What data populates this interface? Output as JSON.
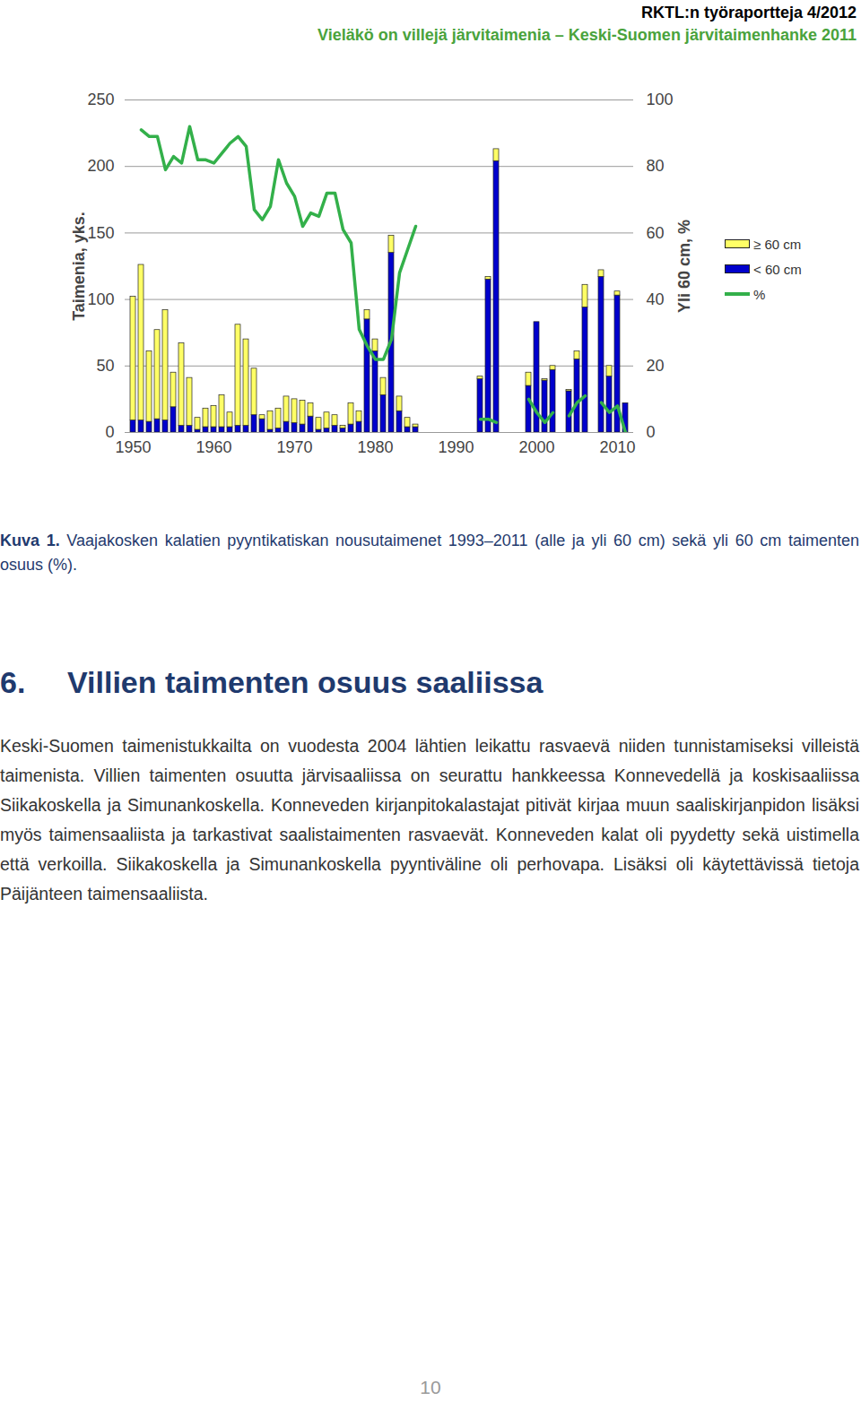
{
  "header": {
    "report": "RKTL:n työraportteja 4/2012",
    "title": "Vieläkö on villejä järvitaimenia – Keski-Suomen järvitaimenhanke 2011"
  },
  "chart_data": {
    "type": "bar",
    "stacked": true,
    "categories": [
      "1950",
      null,
      null,
      null,
      null,
      null,
      null,
      null,
      null,
      null,
      "1960",
      null,
      null,
      null,
      null,
      null,
      null,
      null,
      null,
      null,
      "1970",
      null,
      null,
      null,
      null,
      null,
      null,
      null,
      null,
      null,
      "1980",
      null,
      null,
      null,
      null,
      null,
      null,
      null,
      null,
      null,
      "1990",
      null,
      null,
      null,
      null,
      null,
      null,
      null,
      null,
      null,
      "2000",
      null,
      null,
      null,
      null,
      null,
      null,
      null,
      null,
      null,
      "2010",
      null
    ],
    "ylabel": "Taimenia, yks.",
    "y2label": "Yli 60 cm, %",
    "ylim": [
      0,
      250
    ],
    "yticks": [
      0,
      50,
      100,
      150,
      200,
      250
    ],
    "y2lim": [
      0,
      100
    ],
    "y2ticks": [
      0,
      20,
      40,
      60,
      80,
      100
    ],
    "grid": true,
    "legend": "right",
    "series": [
      {
        "name": "≥ 60 cm",
        "color": "#ffff66",
        "values": [
          93,
          117,
          53,
          67,
          83,
          26,
          62,
          36,
          9,
          14,
          16,
          24,
          11,
          76,
          65,
          35,
          3,
          14,
          15,
          19,
          18,
          18,
          10,
          9,
          12,
          8,
          2,
          16,
          8,
          7,
          9,
          13,
          13,
          11,
          7,
          2,
          null,
          null,
          null,
          null,
          null,
          null,
          null,
          2,
          2,
          9,
          null,
          null,
          null,
          10,
          0,
          1,
          3,
          null,
          1,
          6,
          17,
          null,
          5,
          8,
          3,
          0
        ]
      },
      {
        "name": "< 60 cm",
        "color": "#0000cc",
        "values": [
          9,
          9,
          8,
          10,
          9,
          19,
          5,
          5,
          2,
          4,
          4,
          4,
          4,
          5,
          5,
          13,
          10,
          2,
          3,
          8,
          7,
          6,
          12,
          2,
          3,
          5,
          3,
          6,
          8,
          85,
          61,
          28,
          135,
          16,
          4,
          4,
          null,
          null,
          null,
          null,
          null,
          null,
          null,
          40,
          115,
          204,
          null,
          null,
          null,
          35,
          83,
          39,
          47,
          null,
          31,
          55,
          94,
          null,
          117,
          42,
          103,
          22
        ]
      },
      {
        "name": "%",
        "type": "line",
        "axis": "y2",
        "color": "#33b04a",
        "values": [
          null,
          91,
          89,
          89,
          79,
          83,
          81,
          92,
          82,
          82,
          81,
          84,
          87,
          89,
          86,
          67,
          64,
          68,
          82,
          75,
          71,
          62,
          66,
          65,
          72,
          72,
          61,
          57,
          31,
          26,
          22,
          22,
          28,
          48,
          55,
          62,
          null,
          null,
          null,
          null,
          null,
          null,
          null,
          4,
          4,
          3,
          null,
          null,
          null,
          10,
          6,
          3,
          6,
          null,
          5,
          9,
          11,
          null,
          9,
          6,
          8,
          0
        ]
      }
    ]
  },
  "caption": {
    "label": "Kuva 1.",
    "text": "Vaajakosken kalatien pyyntikatiskan nousutaimenet 1993–2011 (alle ja yli 60 cm) sekä yli 60 cm taimenten osuus (%)."
  },
  "section": {
    "number": "6.",
    "title": "Villien taimenten osuus saaliissa"
  },
  "paragraph": "Keski-Suomen taimenistukkailta on vuodesta 2004 lähtien leikattu rasvaevä niiden tunnistamiseksi villeistä taimenista. Villien taimenten osuutta järvisaaliissa on seurattu hankkeessa Konnevedellä ja koskisaaliissa Siikakoskella ja Simunankoskella. Konneveden kirjanpitokalastajat pitivät kirjaa muun saaliskirjanpidon lisäksi myös taimensaaliista ja tarkastivat saalistaimenten rasvaevät. Konneveden kalat oli pyydetty sekä uistimella että verkoilla. Siikakoskella ja Simunankoskella pyyntiväline oli perhovapa. Lisäksi oli käytettävissä tietoja Päijänteen taimensaaliista.",
  "page_number": "10"
}
